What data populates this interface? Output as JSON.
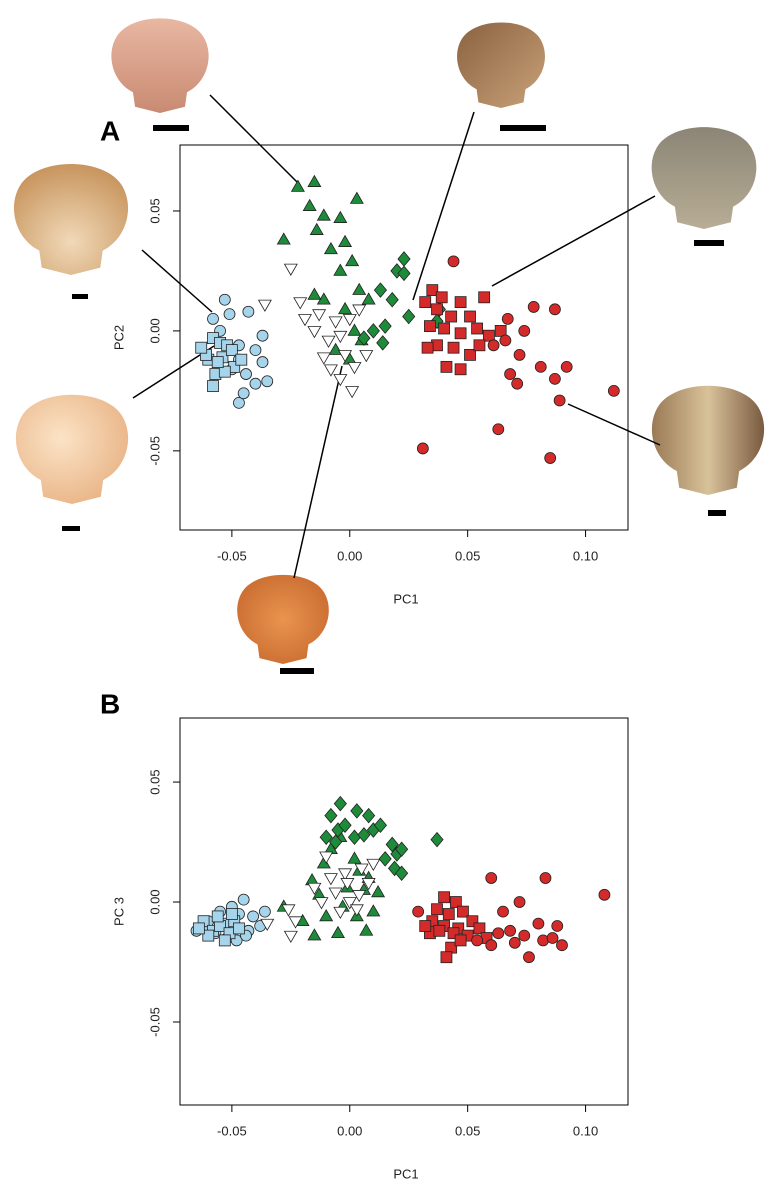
{
  "chart_data": [
    {
      "type": "scatter",
      "panel": "A",
      "xlabel": "PC1",
      "ylabel": "PC2",
      "xlim": [
        -0.072,
        0.118
      ],
      "ylim": [
        -0.083,
        0.0775
      ],
      "xticks": [
        -0.05,
        {
          "value": 0,
          "label": "0.00"
        },
        0.05,
        {
          "value": 0.1,
          "label": "0.10"
        }
      ],
      "yticks": [
        -0.05,
        {
          "value": 0,
          "label": "0.00"
        },
        0.05
      ],
      "series": [
        {
          "color": "#a6d4ea",
          "marker": "circle",
          "x": [
            -0.053,
            -0.058,
            -0.051,
            -0.043,
            -0.037,
            -0.047,
            -0.04,
            -0.047,
            -0.037,
            -0.044,
            -0.035,
            -0.04,
            -0.047,
            -0.055,
            -0.05,
            -0.045
          ],
          "values": [
            0.013,
            0.005,
            0.007,
            0.008,
            -0.002,
            -0.006,
            -0.008,
            -0.012,
            -0.013,
            -0.018,
            -0.021,
            -0.022,
            -0.03,
            0.0,
            -0.016,
            -0.026
          ]
        },
        {
          "color": "#a6d4ea",
          "marker": "square",
          "x": [
            -0.058,
            -0.055,
            -0.052,
            -0.06,
            -0.054,
            -0.05,
            -0.057,
            -0.061,
            -0.049,
            -0.058,
            -0.053,
            -0.046,
            -0.063,
            -0.056
          ],
          "values": [
            -0.003,
            -0.005,
            -0.006,
            -0.012,
            -0.011,
            -0.008,
            -0.018,
            -0.01,
            -0.015,
            -0.023,
            -0.017,
            -0.012,
            -0.007,
            -0.013
          ]
        },
        {
          "color": "#1e8b3a",
          "marker": "triangle",
          "x": [
            -0.022,
            -0.015,
            0.003,
            -0.017,
            -0.011,
            -0.004,
            -0.014,
            -0.002,
            -0.028,
            -0.008,
            0.001,
            -0.004,
            0.004,
            -0.011,
            0.008,
            -0.002,
            0.002,
            -0.006,
            0.0,
            0.005,
            -0.015
          ],
          "values": [
            0.06,
            0.062,
            0.055,
            0.052,
            0.048,
            0.047,
            0.042,
            0.037,
            0.038,
            0.034,
            0.029,
            0.025,
            0.017,
            0.013,
            0.013,
            0.009,
            0.0,
            -0.008,
            -0.012,
            -0.004,
            0.015
          ]
        },
        {
          "color": "#ffffff",
          "marker": "triangle-down",
          "x": [
            -0.025,
            -0.036,
            -0.021,
            -0.013,
            -0.006,
            0.0,
            -0.015,
            -0.009,
            -0.004,
            -0.011,
            -0.002,
            -0.008,
            -0.004,
            0.002,
            0.001,
            0.007,
            0.004,
            -0.019
          ],
          "values": [
            0.026,
            0.011,
            0.012,
            0.007,
            0.004,
            0.005,
            0.0,
            -0.004,
            -0.002,
            -0.011,
            -0.01,
            -0.016,
            -0.02,
            -0.015,
            -0.025,
            -0.01,
            0.009,
            0.005
          ]
        },
        {
          "color": "#1e8b3a",
          "marker": "diamond",
          "x": [
            0.023,
            0.02,
            0.023,
            0.013,
            0.018,
            0.025,
            0.015,
            0.006,
            0.01,
            0.014,
            0.038,
            0.037
          ],
          "values": [
            0.03,
            0.025,
            0.024,
            0.017,
            0.013,
            0.006,
            0.002,
            -0.003,
            0.0,
            -0.005,
            0.009,
            0.004
          ]
        },
        {
          "color": "#d42a2a",
          "marker": "square",
          "x": [
            0.035,
            0.039,
            0.047,
            0.057,
            0.032,
            0.037,
            0.043,
            0.051,
            0.034,
            0.04,
            0.047,
            0.054,
            0.059,
            0.037,
            0.044,
            0.051,
            0.033,
            0.041,
            0.047,
            0.055,
            0.064
          ],
          "values": [
            0.017,
            0.014,
            0.012,
            0.014,
            0.012,
            0.009,
            0.006,
            0.006,
            0.002,
            0.001,
            -0.001,
            0.001,
            -0.002,
            -0.006,
            -0.007,
            -0.01,
            -0.007,
            -0.015,
            -0.016,
            -0.006,
            0.0
          ]
        },
        {
          "color": "#d42a2a",
          "marker": "circle",
          "x": [
            0.044,
            0.067,
            0.078,
            0.087,
            0.074,
            0.066,
            0.072,
            0.081,
            0.092,
            0.087,
            0.068,
            0.071,
            0.089,
            0.112,
            0.063,
            0.031,
            0.085,
            0.061
          ],
          "values": [
            0.029,
            0.005,
            0.01,
            0.009,
            0.0,
            -0.004,
            -0.01,
            -0.015,
            -0.015,
            -0.02,
            -0.018,
            -0.022,
            -0.029,
            -0.025,
            -0.041,
            -0.049,
            -0.053,
            -0.006
          ]
        }
      ]
    },
    {
      "type": "scatter",
      "panel": "B",
      "xlabel": "PC1",
      "ylabel": "PC 3",
      "xlim": [
        -0.072,
        0.118
      ],
      "ylim": [
        -0.0846,
        0.0767
      ],
      "xticks": [
        -0.05,
        {
          "value": 0,
          "label": "0.00"
        },
        0.05,
        {
          "value": 0.1,
          "label": "0.10"
        }
      ],
      "yticks": [
        -0.05,
        {
          "value": 0,
          "label": "0.00"
        },
        0.05
      ],
      "series": [
        {
          "color": "#a6d4ea",
          "marker": "circle",
          "x": [
            -0.065,
            -0.06,
            -0.055,
            -0.05,
            -0.047,
            -0.045,
            -0.041,
            -0.038,
            -0.043,
            -0.052,
            -0.057,
            -0.048,
            -0.044,
            -0.036,
            -0.062,
            -0.053
          ],
          "values": [
            -0.012,
            -0.008,
            -0.004,
            -0.002,
            -0.005,
            0.001,
            -0.006,
            -0.01,
            -0.012,
            -0.015,
            -0.013,
            -0.016,
            -0.014,
            -0.004,
            -0.01,
            -0.009
          ]
        },
        {
          "color": "#a6d4ea",
          "marker": "square",
          "x": [
            -0.062,
            -0.058,
            -0.055,
            -0.051,
            -0.049,
            -0.056,
            -0.06,
            -0.053,
            -0.047,
            -0.064,
            -0.05
          ],
          "values": [
            -0.008,
            -0.012,
            -0.01,
            -0.013,
            -0.008,
            -0.006,
            -0.014,
            -0.016,
            -0.011,
            -0.011,
            -0.005
          ]
        },
        {
          "color": "#1e8b3a",
          "marker": "triangle",
          "x": [
            -0.028,
            -0.02,
            -0.015,
            -0.005,
            -0.01,
            -0.003,
            0.003,
            0.007,
            0.012,
            0.008,
            -0.011,
            -0.008,
            -0.004,
            0.002,
            0.006,
            -0.013,
            0.01,
            -0.016,
            0.004,
            -0.001
          ],
          "values": [
            -0.002,
            -0.008,
            -0.014,
            -0.013,
            -0.006,
            -0.002,
            -0.006,
            -0.012,
            0.004,
            0.01,
            0.016,
            0.022,
            0.027,
            0.018,
            0.005,
            0.003,
            -0.004,
            0.009,
            0.013,
            0.006
          ]
        },
        {
          "color": "#ffffff",
          "marker": "triangle-down",
          "x": [
            -0.035,
            -0.025,
            -0.023,
            -0.012,
            -0.006,
            0.0,
            0.004,
            -0.008,
            -0.002,
            -0.01,
            0.005,
            -0.015,
            0.003,
            -0.004,
            0.008,
            -0.026,
            0.01,
            -0.001
          ],
          "values": [
            -0.009,
            -0.014,
            -0.008,
            0.0,
            0.004,
            0.0,
            0.003,
            0.01,
            0.012,
            0.019,
            0.014,
            0.006,
            -0.003,
            -0.004,
            0.008,
            -0.003,
            0.016,
            0.008
          ]
        },
        {
          "color": "#1e8b3a",
          "marker": "diamond",
          "x": [
            -0.004,
            0.003,
            -0.008,
            -0.005,
            -0.002,
            0.008,
            0.01,
            0.013,
            0.002,
            -0.01,
            0.018,
            0.02,
            0.022,
            0.015,
            0.019,
            0.022,
            0.037,
            -0.006,
            0.006
          ],
          "values": [
            0.041,
            0.038,
            0.036,
            0.03,
            0.032,
            0.036,
            0.03,
            0.032,
            0.027,
            0.027,
            0.024,
            0.02,
            0.022,
            0.018,
            0.014,
            0.012,
            0.026,
            0.025,
            0.028
          ]
        },
        {
          "color": "#d42a2a",
          "marker": "square",
          "x": [
            0.04,
            0.045,
            0.037,
            0.042,
            0.048,
            0.035,
            0.04,
            0.046,
            0.052,
            0.034,
            0.038,
            0.044,
            0.05,
            0.055,
            0.032,
            0.043,
            0.041,
            0.058,
            0.047
          ],
          "values": [
            0.002,
            0.0,
            -0.003,
            -0.005,
            -0.004,
            -0.008,
            -0.01,
            -0.011,
            -0.008,
            -0.013,
            -0.012,
            -0.013,
            -0.014,
            -0.011,
            -0.01,
            -0.019,
            -0.023,
            -0.015,
            -0.016
          ]
        },
        {
          "color": "#d42a2a",
          "marker": "circle",
          "x": [
            0.029,
            0.06,
            0.072,
            0.083,
            0.108,
            0.065,
            0.063,
            0.068,
            0.074,
            0.08,
            0.082,
            0.086,
            0.09,
            0.076,
            0.06,
            0.054,
            0.07,
            0.088
          ],
          "values": [
            -0.004,
            0.01,
            0.0,
            0.01,
            0.003,
            -0.004,
            -0.013,
            -0.012,
            -0.014,
            -0.009,
            -0.016,
            -0.015,
            -0.018,
            -0.023,
            -0.018,
            -0.016,
            -0.017,
            -0.01
          ]
        }
      ]
    }
  ]
}
